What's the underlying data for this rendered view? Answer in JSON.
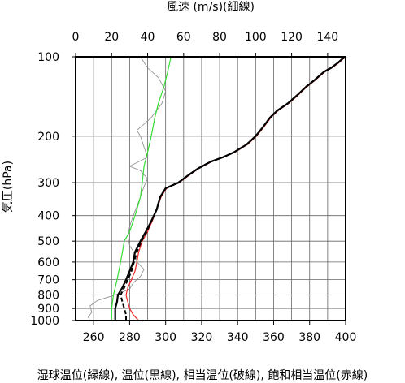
{
  "chart_data": {
    "type": "line",
    "title": "",
    "xlabel": "湿球温位(緑線), 温位(黒線), 相当温位(破線), 飽和相当温位(赤線)",
    "x2label": "風速 (m/s)(細線)",
    "ylabel": "気圧(hPa)",
    "xlim": [
      250,
      400
    ],
    "x2lim": [
      0,
      150
    ],
    "ylim": [
      1000,
      100
    ],
    "yscale": "log",
    "grid": true,
    "xticks": [
      260,
      280,
      300,
      320,
      340,
      360,
      380,
      400
    ],
    "x2ticks": [
      0,
      20,
      40,
      60,
      80,
      100,
      120,
      140
    ],
    "yticks": [
      100,
      200,
      300,
      400,
      500,
      600,
      700,
      800,
      900,
      1000
    ],
    "xtick_labels": [
      "260",
      "280",
      "300",
      "320",
      "340",
      "360",
      "380",
      "400"
    ],
    "x2tick_labels": [
      "0",
      "20",
      "40",
      "60",
      "80",
      "100",
      "120",
      "140"
    ],
    "ytick_labels": [
      "100",
      "200",
      "300",
      "400",
      "500",
      "600",
      "700",
      "800",
      "900",
      "1000"
    ],
    "colors": {
      "wet_bulb": "#33dd33",
      "theta": "#000000",
      "theta_e": "#000000",
      "theta_es": "#ee2222",
      "wind": "#888888"
    },
    "series": [
      {
        "key": "wet_bulb",
        "axis": "x",
        "style": "solid",
        "points": [
          [
            270,
            1000
          ],
          [
            270,
            950
          ],
          [
            270,
            900
          ],
          [
            270.5,
            850
          ],
          [
            271,
            800
          ],
          [
            272,
            750
          ],
          [
            273,
            700
          ],
          [
            274,
            650
          ],
          [
            275,
            600
          ],
          [
            276,
            550
          ],
          [
            277,
            500
          ],
          [
            280,
            460
          ],
          [
            282,
            420
          ],
          [
            284,
            380
          ],
          [
            286,
            340
          ],
          [
            287,
            300
          ],
          [
            288,
            260
          ],
          [
            290,
            230
          ],
          [
            292,
            200
          ],
          [
            294,
            170
          ],
          [
            296,
            150
          ],
          [
            299,
            130
          ],
          [
            301,
            115
          ],
          [
            303,
            100
          ]
        ]
      },
      {
        "key": "theta",
        "axis": "x",
        "style": "solid",
        "points": [
          [
            272,
            1000
          ],
          [
            272,
            950
          ],
          [
            272,
            900
          ],
          [
            273,
            850
          ],
          [
            273.5,
            800
          ],
          [
            276,
            750
          ],
          [
            278,
            700
          ],
          [
            280,
            650
          ],
          [
            282,
            600
          ],
          [
            283,
            550
          ],
          [
            286,
            500
          ],
          [
            289,
            460
          ],
          [
            292,
            420
          ],
          [
            295,
            380
          ],
          [
            297,
            340
          ],
          [
            300,
            315
          ],
          [
            307,
            300
          ],
          [
            313,
            280
          ],
          [
            318,
            265
          ],
          [
            325,
            250
          ],
          [
            332,
            240
          ],
          [
            338,
            230
          ],
          [
            345,
            215
          ],
          [
            350,
            200
          ],
          [
            354,
            185
          ],
          [
            358,
            170
          ],
          [
            362,
            160
          ],
          [
            368,
            150
          ],
          [
            373,
            140
          ],
          [
            378,
            130
          ],
          [
            383,
            122
          ],
          [
            388,
            114
          ],
          [
            392,
            110
          ],
          [
            396,
            105
          ],
          [
            398,
            102
          ],
          [
            400,
            100
          ]
        ]
      },
      {
        "key": "theta_e",
        "axis": "x",
        "style": "dashed",
        "points": [
          [
            278,
            1000
          ],
          [
            278,
            950
          ],
          [
            277,
            900
          ],
          [
            276,
            850
          ],
          [
            275,
            800
          ],
          [
            277,
            750
          ],
          [
            279,
            700
          ],
          [
            281,
            650
          ],
          [
            282.5,
            600
          ],
          [
            284,
            550
          ],
          [
            286.5,
            500
          ],
          [
            289.5,
            460
          ],
          [
            292,
            420
          ],
          [
            295,
            380
          ],
          [
            297,
            340
          ],
          [
            300,
            315
          ],
          [
            307,
            300
          ],
          [
            313,
            280
          ],
          [
            318,
            265
          ],
          [
            325,
            250
          ],
          [
            332,
            240
          ],
          [
            338,
            230
          ],
          [
            345,
            215
          ],
          [
            350,
            200
          ],
          [
            354,
            185
          ],
          [
            358,
            170
          ],
          [
            362,
            160
          ],
          [
            368,
            150
          ],
          [
            373,
            140
          ],
          [
            378,
            130
          ],
          [
            383,
            122
          ],
          [
            388,
            114
          ],
          [
            392,
            110
          ],
          [
            396,
            105
          ],
          [
            398,
            102
          ],
          [
            400,
            100
          ]
        ]
      },
      {
        "key": "theta_es",
        "axis": "x",
        "style": "solid",
        "points": [
          [
            285,
            1000
          ],
          [
            282,
            950
          ],
          [
            280,
            900
          ],
          [
            279,
            850
          ],
          [
            278,
            800
          ],
          [
            279,
            750
          ],
          [
            281,
            700
          ],
          [
            283,
            650
          ],
          [
            284,
            600
          ],
          [
            285,
            550
          ],
          [
            287,
            500
          ],
          [
            290,
            460
          ],
          [
            292.5,
            420
          ],
          [
            295,
            380
          ],
          [
            297.5,
            340
          ],
          [
            300.5,
            315
          ],
          [
            307.5,
            300
          ],
          [
            313.5,
            280
          ],
          [
            318.5,
            265
          ],
          [
            325.5,
            250
          ],
          [
            332.5,
            240
          ],
          [
            338.5,
            230
          ],
          [
            345.5,
            215
          ],
          [
            350.5,
            200
          ],
          [
            354.5,
            185
          ],
          [
            358.5,
            170
          ],
          [
            362.5,
            160
          ],
          [
            368.5,
            150
          ],
          [
            373.5,
            140
          ],
          [
            378.5,
            130
          ],
          [
            383.5,
            122
          ],
          [
            388.5,
            114
          ],
          [
            392.5,
            110
          ],
          [
            396.5,
            105
          ],
          [
            398.5,
            102
          ],
          [
            400.5,
            100
          ]
        ]
      },
      {
        "key": "wind",
        "axis": "x2",
        "style": "solid",
        "points": [
          [
            8,
            1000
          ],
          [
            7,
            970
          ],
          [
            9,
            930
          ],
          [
            8,
            880
          ],
          [
            12,
            840
          ],
          [
            22,
            800
          ],
          [
            30,
            760
          ],
          [
            32,
            720
          ],
          [
            36,
            680
          ],
          [
            38,
            640
          ],
          [
            34,
            600
          ],
          [
            33,
            560
          ],
          [
            30,
            520
          ],
          [
            29,
            480
          ],
          [
            30,
            440
          ],
          [
            32,
            400
          ],
          [
            34,
            370
          ],
          [
            36,
            340
          ],
          [
            38,
            310
          ],
          [
            40,
            290
          ],
          [
            36,
            270
          ],
          [
            30,
            260
          ],
          [
            35,
            250
          ],
          [
            40,
            240
          ],
          [
            38,
            220
          ],
          [
            36,
            200
          ],
          [
            34,
            190
          ],
          [
            38,
            180
          ],
          [
            42,
            170
          ],
          [
            48,
            150
          ],
          [
            50,
            135
          ],
          [
            46,
            120
          ],
          [
            40,
            110
          ],
          [
            36,
            100
          ]
        ]
      }
    ]
  }
}
